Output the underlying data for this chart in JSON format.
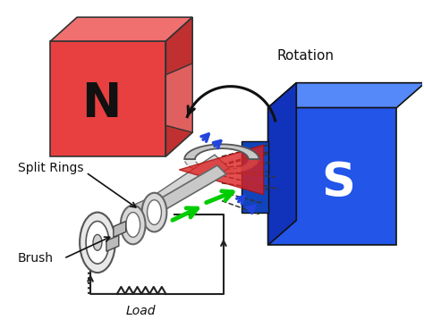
{
  "bg_color": "#ffffff",
  "N_magnet": {
    "label": "N",
    "color_face": "#e84040",
    "color_top": "#f07070",
    "color_side": "#c03030",
    "color_edge": "#333333"
  },
  "S_magnet": {
    "label": "S",
    "color_face": "#2255e8",
    "color_top": "#5588f8",
    "color_side": "#1133bb",
    "color_edge": "#111111"
  },
  "coil_color": "#cccccc",
  "shaft_color": "#d0d0d0",
  "ring_color": "#d8d8d8",
  "circuit_color": "#222222",
  "green_arrow": "#00cc00",
  "blue_arrow": "#2244dd",
  "red_cone_color": "#dd2222",
  "labels": {
    "N": "N",
    "S": "S",
    "rotation": "Rotation",
    "split_rings": "Split Rings",
    "brush": "Brush",
    "load": "Load"
  },
  "font_sizes": {
    "NS": 38,
    "rotation": 10,
    "labels": 9
  }
}
